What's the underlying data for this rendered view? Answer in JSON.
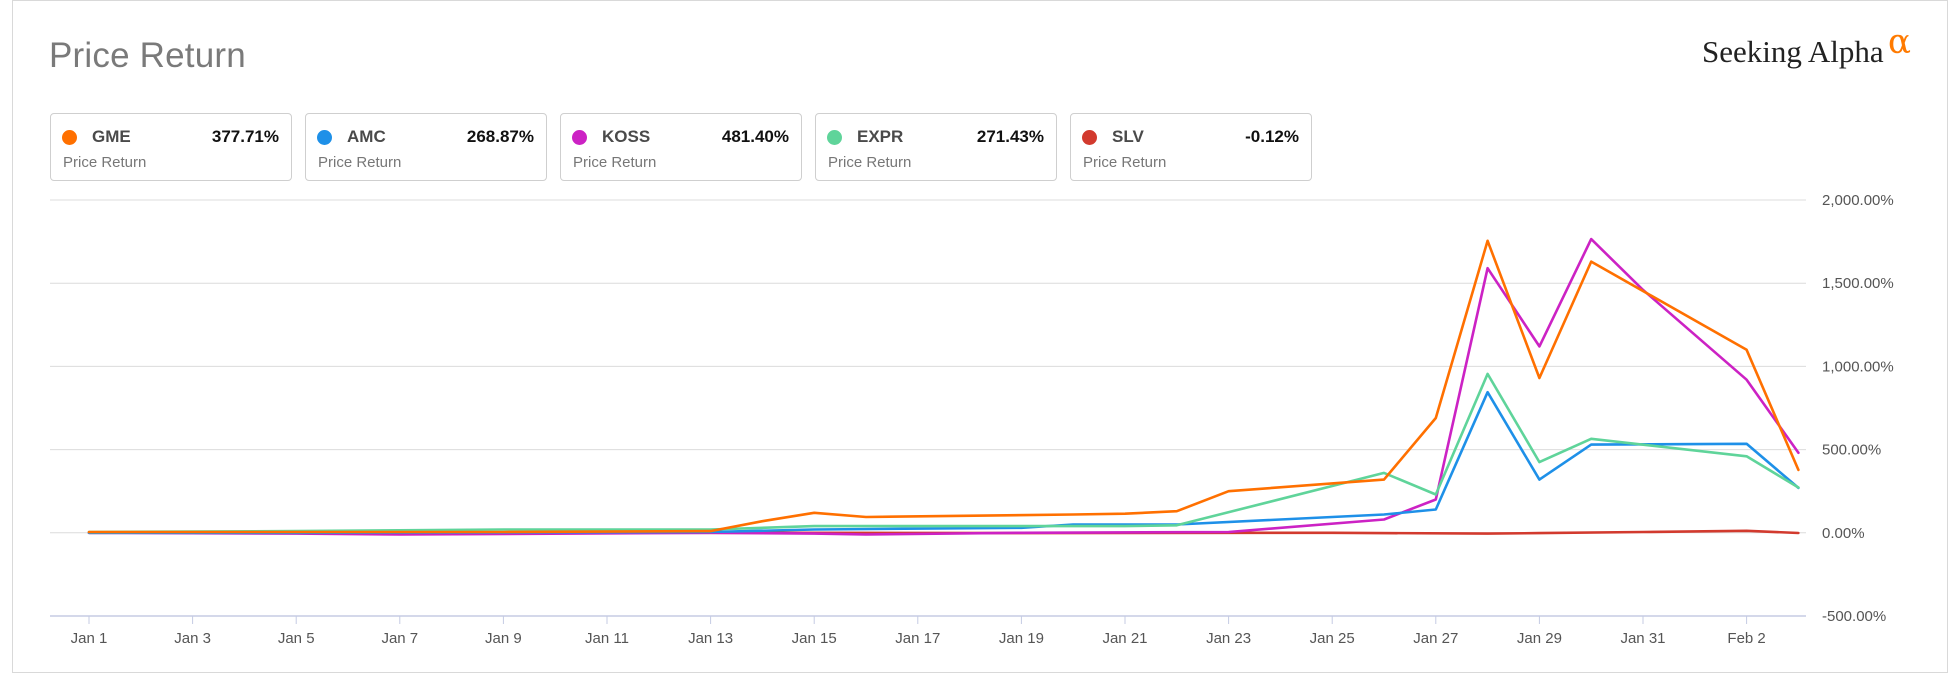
{
  "header": {
    "title": "Price Return",
    "brand": "Seeking Alpha",
    "brand_mark": "α",
    "brand_color": "#ff7a00"
  },
  "legend": [
    {
      "ticker": "GME",
      "value": "377.71%",
      "sub": "Price Return",
      "color": "#ff7000"
    },
    {
      "ticker": "AMC",
      "value": "268.87%",
      "sub": "Price Return",
      "color": "#1e90e8"
    },
    {
      "ticker": "KOSS",
      "value": "481.40%",
      "sub": "Price Return",
      "color": "#cc22c4"
    },
    {
      "ticker": "EXPR",
      "value": "271.43%",
      "sub": "Price Return",
      "color": "#5fd49a"
    },
    {
      "ticker": "SLV",
      "value": "-0.12%",
      "sub": "Price Return",
      "color": "#d23a2e"
    }
  ],
  "chart_data": {
    "type": "line",
    "title": "Price Return",
    "ylim": [
      -500,
      2000
    ],
    "yticks": [
      2000,
      1500,
      1000,
      500,
      0,
      -500
    ],
    "ytick_labels": [
      "2,000.00%",
      "1,500.00%",
      "1,000.00%",
      "500.00%",
      "0.00%",
      "-500.00%"
    ],
    "xlim": [
      1,
      34
    ],
    "xticks": [
      1,
      3,
      5,
      7,
      9,
      11,
      13,
      15,
      17,
      19,
      21,
      23,
      25,
      27,
      29,
      31,
      33
    ],
    "xtick_labels": [
      "Jan 1",
      "Jan 3",
      "Jan 5",
      "Jan 7",
      "Jan 9",
      "Jan 11",
      "Jan 13",
      "Jan 15",
      "Jan 17",
      "Jan 19",
      "Jan 21",
      "Jan 23",
      "Jan 25",
      "Jan 27",
      "Jan 29",
      "Jan 31",
      "Feb 2"
    ],
    "grid": true,
    "series": [
      {
        "name": "SLV",
        "color": "#d23a2e",
        "points": [
          [
            1,
            0
          ],
          [
            7,
            3
          ],
          [
            13,
            0
          ],
          [
            19,
            -2
          ],
          [
            25,
            0
          ],
          [
            28,
            -5
          ],
          [
            29,
            -2
          ],
          [
            31,
            5
          ],
          [
            33,
            12
          ],
          [
            34,
            -1
          ]
        ]
      },
      {
        "name": "KOSS",
        "color": "#cc22c4",
        "points": [
          [
            1,
            0
          ],
          [
            5,
            -5
          ],
          [
            7,
            -10
          ],
          [
            13,
            0
          ],
          [
            15,
            -5
          ],
          [
            16,
            -10
          ],
          [
            19,
            0
          ],
          [
            23,
            5
          ],
          [
            26,
            80
          ],
          [
            27,
            200
          ],
          [
            28,
            1590
          ],
          [
            29,
            1120
          ],
          [
            30,
            1765
          ],
          [
            31,
            1460
          ],
          [
            33,
            920
          ],
          [
            34,
            481
          ]
        ]
      },
      {
        "name": "AMC",
        "color": "#1e90e8",
        "points": [
          [
            1,
            0
          ],
          [
            5,
            0
          ],
          [
            13,
            5
          ],
          [
            15,
            20
          ],
          [
            19,
            30
          ],
          [
            20,
            50
          ],
          [
            22,
            50
          ],
          [
            26,
            110
          ],
          [
            27,
            140
          ],
          [
            28,
            845
          ],
          [
            29,
            320
          ],
          [
            30,
            530
          ],
          [
            33,
            535
          ],
          [
            34,
            270
          ]
        ]
      },
      {
        "name": "EXPR",
        "color": "#5fd49a",
        "points": [
          [
            1,
            5
          ],
          [
            5,
            10
          ],
          [
            9,
            20
          ],
          [
            13,
            20
          ],
          [
            15,
            40
          ],
          [
            21,
            40
          ],
          [
            22,
            45
          ],
          [
            26,
            360
          ],
          [
            27,
            230
          ],
          [
            28,
            955
          ],
          [
            29,
            425
          ],
          [
            30,
            565
          ],
          [
            33,
            460
          ],
          [
            34,
            272
          ]
        ]
      },
      {
        "name": "GME",
        "color": "#ff7000",
        "points": [
          [
            1,
            5
          ],
          [
            9,
            5
          ],
          [
            13,
            10
          ],
          [
            14,
            70
          ],
          [
            15,
            120
          ],
          [
            16,
            95
          ],
          [
            20,
            110
          ],
          [
            21,
            115
          ],
          [
            22,
            130
          ],
          [
            23,
            250
          ],
          [
            26,
            320
          ],
          [
            27,
            690
          ],
          [
            28,
            1755
          ],
          [
            29,
            930
          ],
          [
            30,
            1630
          ],
          [
            33,
            1100
          ],
          [
            34,
            378
          ]
        ]
      }
    ]
  }
}
